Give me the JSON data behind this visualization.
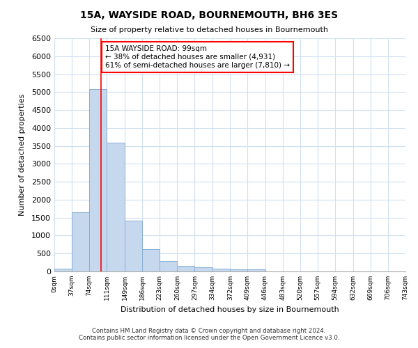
{
  "title": "15A, WAYSIDE ROAD, BOURNEMOUTH, BH6 3ES",
  "subtitle": "Size of property relative to detached houses in Bournemouth",
  "xlabel": "Distribution of detached houses by size in Bournemouth",
  "ylabel": "Number of detached properties",
  "footer_line1": "Contains HM Land Registry data © Crown copyright and database right 2024.",
  "footer_line2": "Contains public sector information licensed under the Open Government Licence v3.0.",
  "annotation_line1": "15A WAYSIDE ROAD: 99sqm",
  "annotation_line2": "← 38% of detached houses are smaller (4,931)",
  "annotation_line3": "61% of semi-detached houses are larger (7,810) →",
  "bar_color": "#c5d8ee",
  "bar_edge_color": "#8aafd4",
  "grid_color": "#d0dff0",
  "reference_line_color": "red",
  "reference_line_x": 99,
  "ylim": [
    0,
    6500
  ],
  "bin_edges": [
    0,
    37,
    74,
    111,
    149,
    186,
    223,
    260,
    297,
    334,
    372,
    409,
    446,
    483,
    520,
    557,
    594,
    632,
    669,
    706,
    743
  ],
  "bar_values": [
    75,
    1650,
    5080,
    3590,
    1410,
    615,
    295,
    155,
    115,
    80,
    65,
    50,
    0,
    0,
    0,
    0,
    0,
    0,
    0,
    0
  ],
  "tick_labels": [
    "0sqm",
    "37sqm",
    "74sqm",
    "111sqm",
    "149sqm",
    "186sqm",
    "223sqm",
    "260sqm",
    "297sqm",
    "334sqm",
    "372sqm",
    "409sqm",
    "446sqm",
    "483sqm",
    "520sqm",
    "557sqm",
    "594sqm",
    "632sqm",
    "669sqm",
    "706sqm",
    "743sqm"
  ]
}
